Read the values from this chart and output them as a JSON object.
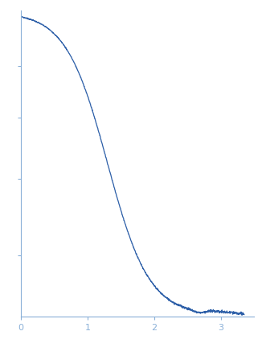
{
  "title": "",
  "xlabel": "",
  "ylabel": "",
  "xlim": [
    0,
    3.5
  ],
  "xticks": [
    0,
    1,
    2,
    3
  ],
  "line_color": "#2d5fa8",
  "line_width": 0.9,
  "background_color": "#ffffff",
  "axis_color": "#8ab0d8",
  "tick_color": "#8ab0d8",
  "label_color": "#8ab0d8",
  "figsize": [
    3.26,
    4.37
  ],
  "dpi": 100
}
